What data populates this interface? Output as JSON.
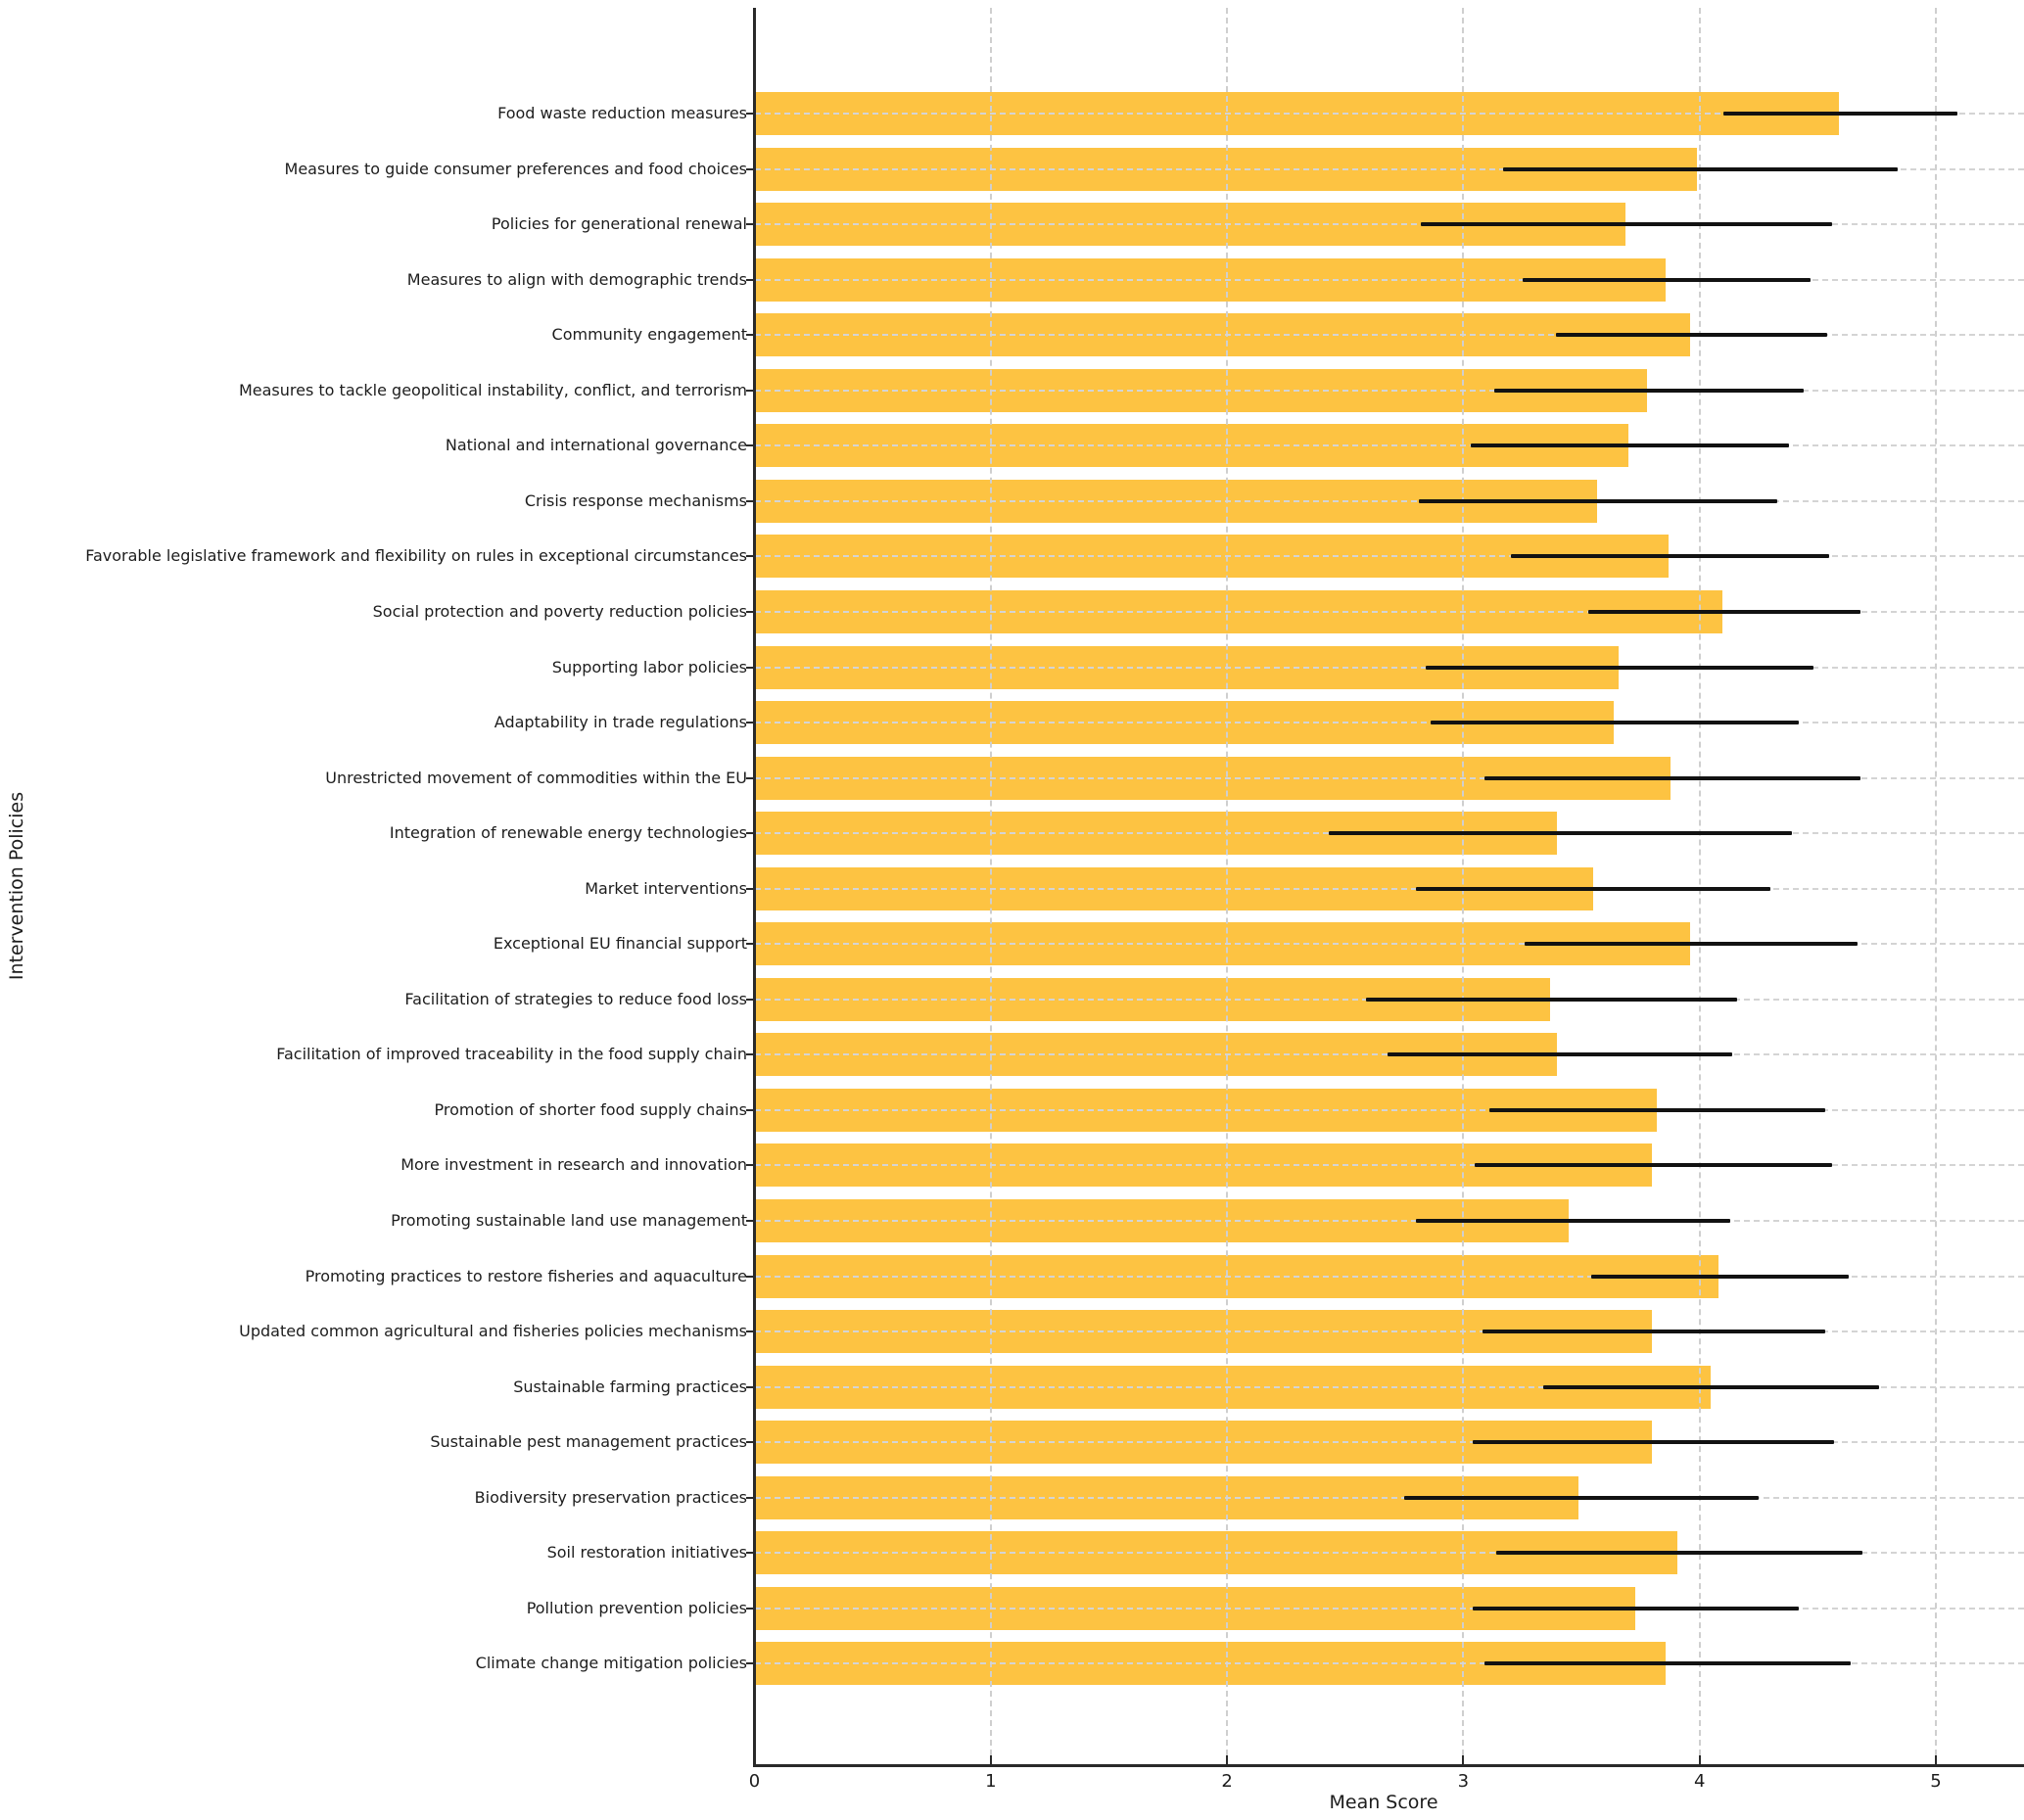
{
  "chart_data": {
    "type": "bar",
    "orientation": "horizontal",
    "title": "",
    "xlabel": "Mean Score",
    "ylabel": "Intervention Policies",
    "xlim": [
      0,
      5.37
    ],
    "xticks": [
      0,
      1,
      2,
      3,
      4,
      5
    ],
    "xtick_labels": [
      "0",
      "1",
      "2",
      "3",
      "4",
      "5"
    ],
    "grid": true,
    "legend": "none",
    "bar_color": "#fdc342",
    "error_color": "#121212",
    "categories": [
      "Food waste reduction measures",
      "Measures to guide consumer preferences and food choices",
      "Policies for generational renewal",
      "Measures to align with demographic trends",
      "Community engagement",
      "Measures to tackle geopolitical instability, conflict, and terrorism",
      "National and international governance",
      "Crisis response mechanisms",
      "Favorable legislative framework and flexibility on rules in exceptional circumstances",
      "Social protection and poverty reduction policies",
      "Supporting labor policies",
      "Adaptability in trade regulations",
      "Unrestricted movement of commodities within the EU",
      "Integration of renewable energy technologies",
      "Market interventions",
      "Exceptional EU financial support",
      "Facilitation of strategies to reduce food loss",
      "Facilitation of improved traceability in the food supply chain",
      "Promotion of shorter food supply chains",
      "More investment in research and innovation",
      "Promoting sustainable land use management",
      "Promoting practices to restore fisheries and aquaculture",
      "Updated common agricultural and fisheries policies mechanisms",
      "Sustainable farming practices",
      "Sustainable pest management practices",
      "Biodiversity preservation practices",
      "Soil restoration initiatives",
      "Pollution prevention policies",
      "Climate change mitigation policies"
    ],
    "series": [
      {
        "name": "Mean Score",
        "values": [
          4.59,
          3.99,
          3.69,
          3.86,
          3.96,
          3.78,
          3.7,
          3.57,
          3.87,
          4.1,
          3.66,
          3.64,
          3.88,
          3.4,
          3.55,
          3.96,
          3.37,
          3.4,
          3.82,
          3.8,
          3.45,
          4.08,
          3.8,
          4.05,
          3.8,
          3.49,
          3.91,
          3.73,
          3.86
        ],
        "error_low": [
          4.1,
          3.17,
          2.82,
          3.25,
          3.39,
          3.13,
          3.03,
          2.81,
          3.2,
          3.53,
          2.84,
          2.86,
          3.09,
          2.43,
          2.8,
          3.26,
          2.59,
          2.68,
          3.11,
          3.05,
          2.8,
          3.54,
          3.08,
          3.34,
          3.04,
          2.75,
          3.14,
          3.04,
          3.09
        ],
        "error_high": [
          5.09,
          4.84,
          4.56,
          4.47,
          4.54,
          4.44,
          4.38,
          4.33,
          4.55,
          4.68,
          4.48,
          4.42,
          4.68,
          4.39,
          4.3,
          4.67,
          4.16,
          4.14,
          4.53,
          4.56,
          4.13,
          4.63,
          4.53,
          4.76,
          4.57,
          4.25,
          4.69,
          4.42,
          4.64
        ]
      }
    ]
  }
}
